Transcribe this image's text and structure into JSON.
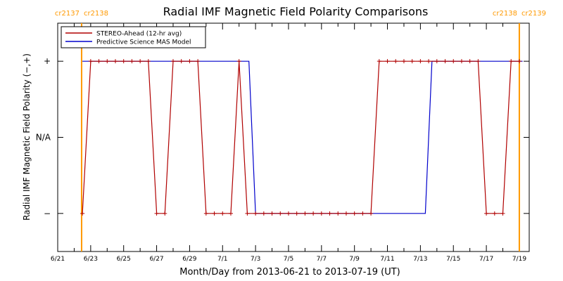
{
  "chart_data": {
    "type": "line",
    "title": "Radial IMF Magnetic Field Polarity Comparisons",
    "xlabel": "Month/Day from 2013-06-21 to 2013-07-19 (UT)",
    "ylabel": "Radial IMF Magnetic Field Polarity (−,+)",
    "x_unit": "days since 2013-06-21 00:00 UT",
    "xlim": [
      0,
      28.6
    ],
    "ylim": [
      -1.5,
      1.5
    ],
    "y_ticks": [
      {
        "value": 1,
        "label": "+"
      },
      {
        "value": 0,
        "label": "N/A"
      },
      {
        "value": -1,
        "label": "−"
      }
    ],
    "x_ticks": [
      {
        "value": 0,
        "label": "6/21"
      },
      {
        "value": 2,
        "label": "6/23"
      },
      {
        "value": 4,
        "label": "6/25"
      },
      {
        "value": 6,
        "label": "6/27"
      },
      {
        "value": 8,
        "label": "6/29"
      },
      {
        "value": 10,
        "label": "7/1"
      },
      {
        "value": 12,
        "label": "7/3"
      },
      {
        "value": 14,
        "label": "7/5"
      },
      {
        "value": 16,
        "label": "7/7"
      },
      {
        "value": 18,
        "label": "7/9"
      },
      {
        "value": 20,
        "label": "7/11"
      },
      {
        "value": 22,
        "label": "7/13"
      },
      {
        "value": 24,
        "label": "7/15"
      },
      {
        "value": 26,
        "label": "7/17"
      },
      {
        "value": 28,
        "label": "7/19"
      }
    ],
    "carrington_boundaries": [
      {
        "x": 1.45,
        "left_label": "cr2137",
        "right_label": "cr2138"
      },
      {
        "x": 28.0,
        "left_label": "cr2138",
        "right_label": "cr2139"
      }
    ],
    "legend_position": "top-left",
    "series": [
      {
        "name": "STEREO-Ahead (12-hr avg)",
        "color": "#b00000",
        "marker": "plus",
        "x": [
          1.5,
          2.0,
          2.5,
          3.0,
          3.5,
          4.0,
          4.5,
          5.0,
          5.5,
          6.0,
          6.5,
          7.0,
          7.5,
          8.0,
          8.5,
          9.0,
          9.5,
          10.0,
          10.5,
          11.0,
          11.5,
          12.0,
          12.5,
          13.0,
          13.5,
          14.0,
          14.5,
          15.0,
          15.5,
          16.0,
          16.5,
          17.0,
          17.5,
          18.0,
          18.5,
          19.0,
          19.5,
          20.0,
          20.5,
          21.0,
          21.5,
          22.0,
          22.5,
          23.0,
          23.5,
          24.0,
          24.5,
          25.0,
          25.5,
          26.0,
          26.5,
          27.0,
          27.5,
          28.0
        ],
        "y": [
          -1,
          1,
          1,
          1,
          1,
          1,
          1,
          1,
          1,
          -1,
          -1,
          1,
          1,
          1,
          1,
          -1,
          -1,
          -1,
          -1,
          1,
          -1,
          -1,
          -1,
          -1,
          -1,
          -1,
          -1,
          -1,
          -1,
          -1,
          -1,
          -1,
          -1,
          -1,
          -1,
          -1,
          1,
          1,
          1,
          1,
          1,
          1,
          1,
          1,
          1,
          1,
          1,
          1,
          1,
          -1,
          -1,
          -1,
          1,
          1
        ]
      },
      {
        "name": "Predictive Science MAS Model",
        "color": "#0000cc",
        "marker": "none",
        "x": [
          1.5,
          11.6,
          12.0,
          22.3,
          22.7,
          28.2
        ],
        "y": [
          1,
          1,
          -1,
          -1,
          1,
          1
        ]
      }
    ]
  }
}
